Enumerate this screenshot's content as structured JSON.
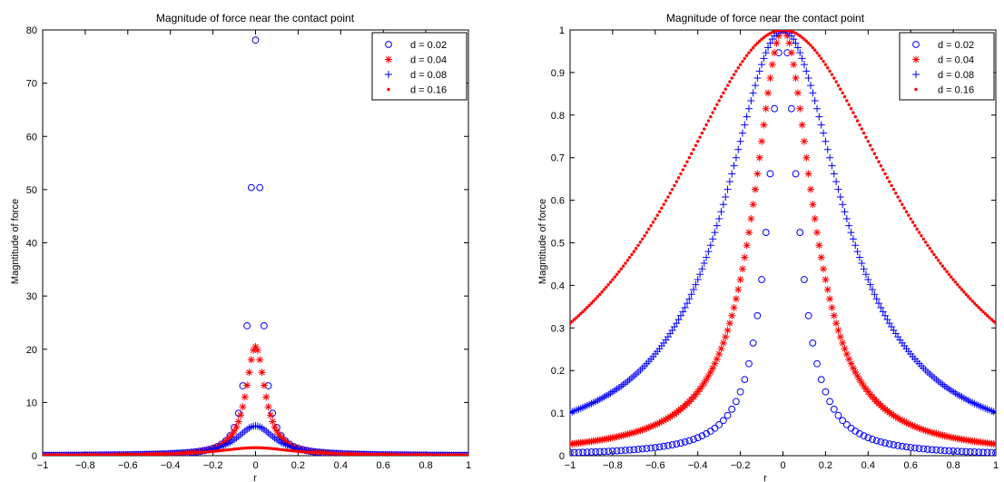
{
  "chart_data": [
    {
      "type": "scatter",
      "title": "Magnitude of force near the contact point",
      "xlabel": "r",
      "ylabel": "Magntitude of force",
      "xlim": [
        -1,
        1
      ],
      "ylim": [
        0,
        80
      ],
      "xticks": [
        -1,
        -0.8,
        -0.6,
        -0.4,
        -0.2,
        0,
        0.2,
        0.4,
        0.6,
        0.8,
        1
      ],
      "xtick_labels": [
        "−1",
        "−0.8",
        "−0.6",
        "−0.4",
        "−0.2",
        "0",
        "0.2",
        "0.4",
        "0.6",
        "0.8",
        "1"
      ],
      "yticks": [
        0,
        10,
        20,
        30,
        40,
        50,
        60,
        70,
        80
      ],
      "ytick_labels": [
        "0",
        "10",
        "20",
        "30",
        "40",
        "50",
        "60",
        "70",
        "80"
      ],
      "grid": false,
      "legend_position": "top-right",
      "series": [
        {
          "name": "d = 0.02",
          "marker": "circle",
          "color": "#0000ff",
          "d": 0.02,
          "peak": 78.1,
          "x_step": 0.02
        },
        {
          "name": "d = 0.04",
          "marker": "asterisk",
          "color": "#ff0000",
          "d": 0.04,
          "peak": 20.5,
          "x_step": 0.01
        },
        {
          "name": "d = 0.08",
          "marker": "plus",
          "color": "#0000ff",
          "d": 0.08,
          "peak": 5.6,
          "x_step": 0.01
        },
        {
          "name": "d = 0.16",
          "marker": "dot",
          "color": "#ff0000",
          "d": 0.16,
          "peak": 1.5,
          "x_step": 0.01
        }
      ]
    },
    {
      "type": "scatter",
      "title": "Magnitude of force near the contact point",
      "xlabel": "r",
      "ylabel": "Magntitude of force",
      "xlim": [
        -1,
        1
      ],
      "ylim": [
        0,
        1
      ],
      "xticks": [
        -1,
        -0.8,
        -0.6,
        -0.4,
        -0.2,
        0,
        0.2,
        0.4,
        0.6,
        0.8,
        1
      ],
      "xtick_labels": [
        "−1",
        "−0.8",
        "−0.6",
        "−0.4",
        "−0.2",
        "0",
        "0.2",
        "0.4",
        "0.6",
        "0.8",
        "1"
      ],
      "yticks": [
        0,
        0.1,
        0.2,
        0.3,
        0.4,
        0.5,
        0.6,
        0.7,
        0.8,
        0.9,
        1
      ],
      "ytick_labels": [
        "0",
        "0.1",
        "0.2",
        "0.3",
        "0.4",
        "0.5",
        "0.6",
        "0.7",
        "0.8",
        "0.9",
        "1"
      ],
      "grid": false,
      "legend_position": "top-right",
      "series": [
        {
          "name": "d = 0.02",
          "marker": "circle",
          "color": "#0000ff",
          "d": 0.02,
          "peak": 1.0,
          "x_step": 0.02
        },
        {
          "name": "d = 0.04",
          "marker": "asterisk",
          "color": "#ff0000",
          "d": 0.04,
          "peak": 1.0,
          "x_step": 0.01
        },
        {
          "name": "d = 0.08",
          "marker": "plus",
          "color": "#0000ff",
          "d": 0.08,
          "peak": 1.0,
          "x_step": 0.01
        },
        {
          "name": "d = 0.16",
          "marker": "dot",
          "color": "#ff0000",
          "d": 0.16,
          "peak": 1.0,
          "x_step": 0.01
        }
      ]
    }
  ]
}
